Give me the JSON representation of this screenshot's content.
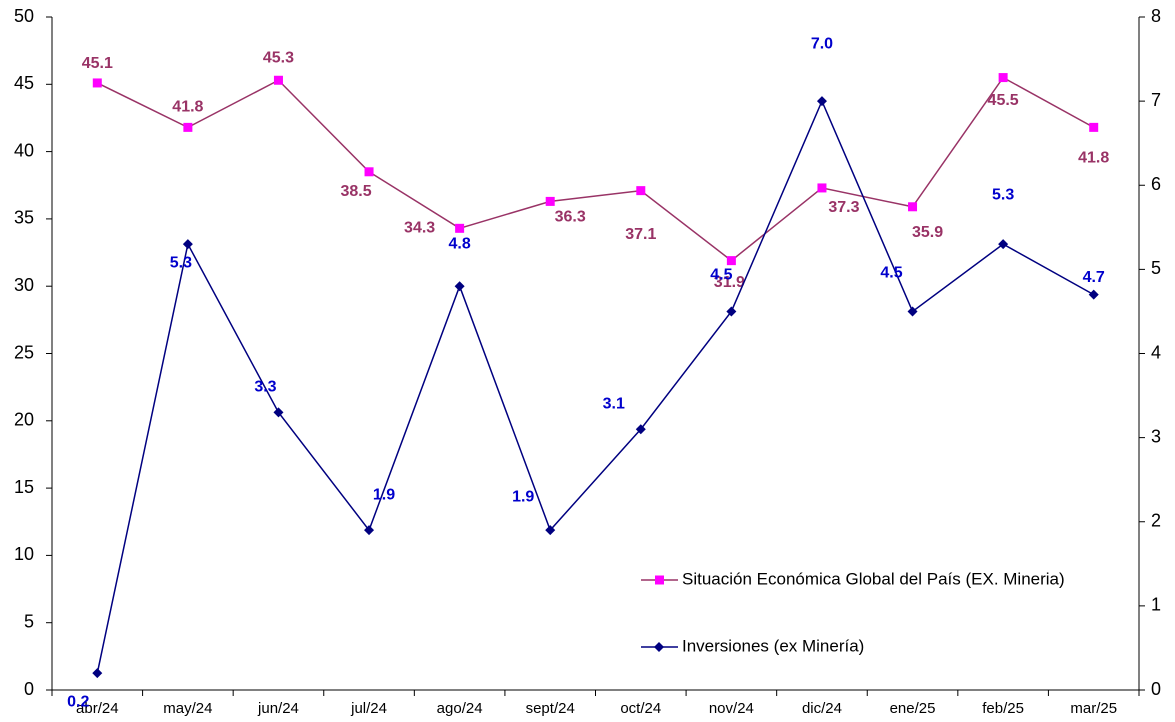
{
  "chart_data": {
    "type": "line",
    "categories": [
      "abr/24",
      "may/24",
      "jun/24",
      "jul/24",
      "ago/24",
      "sept/24",
      "oct/24",
      "nov/24",
      "dic/24",
      "ene/25",
      "feb/25",
      "mar/25"
    ],
    "series": [
      {
        "name": "Situación Económica Global del País (EX. Mineria)",
        "color": "#993366",
        "marker_color": "#ff00ff",
        "label_color": "#993366",
        "values": [
          45.1,
          41.8,
          45.3,
          38.5,
          34.3,
          36.3,
          37.1,
          31.9,
          37.3,
          35.9,
          45.5,
          41.8
        ]
      },
      {
        "name": "Inversiones (ex Minería)",
        "color": "#000080",
        "marker_color": "#000080",
        "label_color": "#0000cc",
        "axis": "y2",
        "values": [
          0.2,
          5.3,
          3.3,
          1.9,
          4.8,
          1.9,
          3.1,
          4.5,
          7.0,
          4.5,
          5.3,
          4.7
        ],
        "value_labels": [
          "0.2",
          "5.3",
          "3.3",
          "1.9",
          "4.8",
          "1.9",
          "3.1",
          "4.5",
          "7.0",
          "4.5",
          "5.3",
          "4.7"
        ]
      }
    ],
    "ylim": [
      0,
      50
    ],
    "yticks": [
      0,
      5,
      10,
      15,
      20,
      25,
      30,
      35,
      40,
      45,
      50
    ],
    "y2lim": [
      0,
      8
    ],
    "y2ticks": [
      0,
      1,
      2,
      3,
      4,
      5,
      6,
      7,
      8
    ],
    "grid": false,
    "legend": "lower right"
  }
}
